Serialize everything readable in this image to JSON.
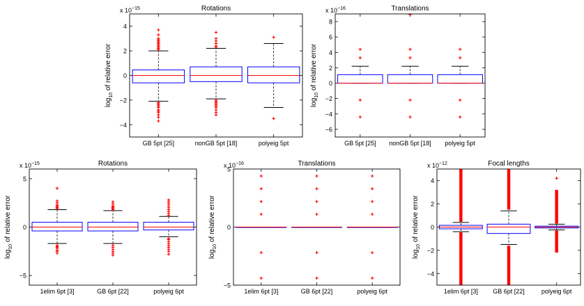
{
  "chart_data": [
    {
      "type": "box",
      "title": "Rotations",
      "ylabel_main": "log",
      "ylabel_sub": "10",
      "ylabel_rest": " of relative error",
      "exp_base": "x 10",
      "exp_power": "−15",
      "ylim": [
        -5,
        5
      ],
      "yticks": [
        "−4",
        "−2",
        "0",
        "2",
        "4"
      ],
      "ytick_values": [
        -4,
        -2,
        0,
        2,
        4
      ],
      "categories": [
        "GB 5pt [25]",
        "nonGB 5pt [18]",
        "polyeig 5pt"
      ],
      "boxes": [
        {
          "q1": -0.6,
          "median": 0.0,
          "q3": 0.45,
          "whisker_low": -2.1,
          "whisker_high": 2.0,
          "outliers": [
            -3.7,
            -3.4,
            -3.2,
            -3.0,
            -2.9,
            -2.8,
            -2.6,
            -2.5,
            -2.4,
            -2.3,
            -2.2,
            2.1,
            2.2,
            2.3,
            2.4,
            2.5,
            2.6,
            2.7,
            2.8,
            2.9,
            3.0,
            3.3,
            3.7
          ]
        },
        {
          "q1": -0.5,
          "median": 0.0,
          "q3": 0.7,
          "whisker_low": -1.9,
          "whisker_high": 2.2,
          "outliers": [
            -3.2,
            -3.0,
            -2.8,
            -2.6,
            -2.5,
            -2.4,
            -2.3,
            -2.2,
            -2.1,
            -2.0,
            2.3,
            2.4,
            2.6,
            2.8,
            3.0,
            3.5
          ]
        },
        {
          "q1": -0.6,
          "median": 0.0,
          "q3": 0.7,
          "whisker_low": -2.6,
          "whisker_high": 2.6,
          "outliers": [
            -3.5,
            3.1
          ]
        }
      ]
    },
    {
      "type": "box",
      "title": "Translations",
      "ylabel_main": "log",
      "ylabel_sub": "10",
      "ylabel_rest": " of relative error",
      "exp_base": "x 10",
      "exp_power": "−16",
      "ylim": [
        -7,
        9
      ],
      "yticks": [
        "−6",
        "−4",
        "−2",
        "0",
        "2",
        "4",
        "6",
        "8"
      ],
      "ytick_values": [
        -6,
        -4,
        -2,
        0,
        2,
        4,
        6,
        8
      ],
      "categories": [
        "GB 5pt [25]",
        "nonGB 5pt [18]",
        "polyeig 5pt"
      ],
      "boxes": [
        {
          "q1": 0.0,
          "median": 0.0,
          "q3": 1.1,
          "whisker_low": 0.0,
          "whisker_high": 2.2,
          "outliers": [
            -4.4,
            -2.2,
            3.3,
            4.4
          ]
        },
        {
          "q1": 0.0,
          "median": 0.0,
          "q3": 1.1,
          "whisker_low": 0.0,
          "whisker_high": 2.2,
          "outliers": [
            -4.4,
            -2.2,
            3.3,
            4.4,
            8.9
          ]
        },
        {
          "q1": 0.0,
          "median": 0.0,
          "q3": 1.1,
          "whisker_low": 0.0,
          "whisker_high": 2.2,
          "outliers": [
            -4.4,
            -2.2,
            3.3,
            4.4
          ]
        }
      ]
    },
    {
      "type": "box",
      "title": "Rotations",
      "ylabel_main": "log",
      "ylabel_sub": "10",
      "ylabel_rest": " of relative error",
      "exp_base": "x 10",
      "exp_power": "−15",
      "ylim": [
        -6,
        6
      ],
      "yticks": [
        "−5",
        "0",
        "5"
      ],
      "ytick_values": [
        -5,
        0,
        5
      ],
      "categories": [
        "1elim 6pt [3]",
        "GB 6pt [22]",
        "polyeig 6pt"
      ],
      "boxes": [
        {
          "q1": -0.4,
          "median": 0.0,
          "q3": 0.5,
          "whisker_low": -1.7,
          "whisker_high": 1.8,
          "outliers": [
            -2.7,
            -2.5,
            -2.4,
            -2.2,
            -2.1,
            -2.0,
            -1.9,
            1.9,
            2.0,
            2.1,
            2.2,
            2.3,
            2.5,
            2.7,
            4.0
          ]
        },
        {
          "q1": -0.4,
          "median": 0.0,
          "q3": 0.5,
          "whisker_low": -1.7,
          "whisker_high": 1.7,
          "outliers": [
            -2.9,
            -2.7,
            -2.5,
            -2.3,
            -2.1,
            -1.9,
            1.8,
            1.9,
            2.0,
            2.1,
            2.2,
            2.4,
            2.6
          ]
        },
        {
          "q1": -0.3,
          "median": 0.0,
          "q3": 0.5,
          "whisker_low": -1.0,
          "whisker_high": 1.1,
          "outliers": [
            -2.8,
            -2.5,
            -2.3,
            -2.1,
            -1.9,
            -1.7,
            -1.5,
            -1.3,
            -1.2,
            1.2,
            1.4,
            1.6,
            1.8,
            2.0,
            2.2,
            2.4,
            2.6,
            2.8
          ]
        }
      ]
    },
    {
      "type": "box",
      "title": "Translations",
      "ylabel_main": "log",
      "ylabel_sub": "10",
      "ylabel_rest": " of relative error",
      "exp_base": "x 10",
      "exp_power": "−16",
      "ylim": [
        -5,
        5
      ],
      "yticks": [
        "−5",
        "0",
        "5"
      ],
      "ytick_values": [
        -5,
        0,
        5
      ],
      "categories": [
        "1elim 6pt [3]",
        "GB 6pt [22]",
        "polyeig 6pt"
      ],
      "boxes": [
        {
          "q1": 0.0,
          "median": 0.0,
          "q3": 0.0,
          "whisker_low": 0.0,
          "whisker_high": 0.0,
          "outliers": [
            -4.4,
            -2.2,
            1.1,
            2.2,
            3.3,
            4.4
          ]
        },
        {
          "q1": 0.0,
          "median": 0.0,
          "q3": 0.0,
          "whisker_low": 0.0,
          "whisker_high": 0.0,
          "outliers": [
            -4.4,
            -2.2,
            1.1,
            2.2,
            3.3,
            4.4
          ]
        },
        {
          "q1": 0.0,
          "median": 0.0,
          "q3": 0.0,
          "whisker_low": 0.0,
          "whisker_high": 0.0,
          "outliers": [
            -4.4,
            -2.2,
            1.1,
            2.2,
            3.3,
            4.4
          ]
        }
      ]
    },
    {
      "type": "box",
      "title": "Focal lengths",
      "ylabel_main": "log",
      "ylabel_sub": "10",
      "ylabel_rest": " of relative error",
      "exp_base": "x 10",
      "exp_power": "−12",
      "ylim": [
        -5,
        5
      ],
      "yticks": [
        "−4",
        "−2",
        "0",
        "2",
        "4"
      ],
      "ytick_values": [
        -4,
        -2,
        0,
        2,
        4
      ],
      "categories": [
        "1elim 6pt [3]",
        "GB 6pt [22]",
        "polyeig 6pt"
      ],
      "boxes": [
        {
          "q1": -0.15,
          "median": 0.0,
          "q3": 0.15,
          "whisker_low": -0.4,
          "whisker_high": 0.4,
          "outlier_bands": [
            [
              0.45,
              5.0
            ],
            [
              -5.0,
              -0.45
            ]
          ]
        },
        {
          "q1": -0.55,
          "median": 0.0,
          "q3": 0.25,
          "whisker_low": -1.5,
          "whisker_high": 1.4,
          "outlier_bands": [
            [
              1.5,
              5.0
            ],
            [
              -5.0,
              -1.6
            ]
          ]
        },
        {
          "q1": -0.08,
          "median": 0.0,
          "q3": 0.08,
          "whisker_low": -0.25,
          "whisker_high": 0.25,
          "outlier_bands": [
            [
              0.3,
              3.2
            ],
            [
              -2.2,
              -0.3
            ]
          ],
          "outliers": [
            4.2
          ]
        }
      ]
    }
  ],
  "colors": {
    "box": "#0000ff",
    "median": "#ff0000",
    "outlier": "#ff0000",
    "whisker": "#000000",
    "axis": "#000000"
  }
}
